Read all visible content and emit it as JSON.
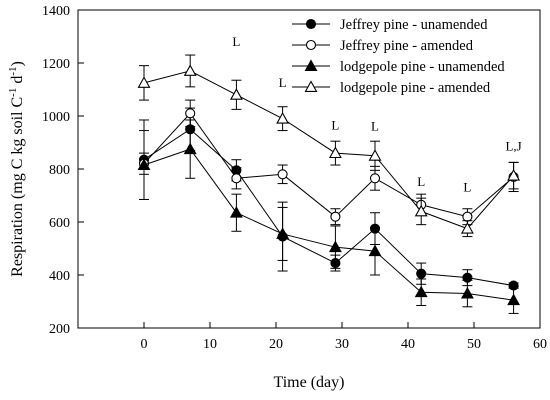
{
  "chart_data": {
    "type": "line",
    "xlabel": "Time (day)",
    "ylabel": {
      "parts": [
        {
          "text": "Respiration (mg C kg soil C",
          "sup": false
        },
        {
          "text": "-1",
          "sup": true
        },
        {
          "text": " d",
          "sup": false
        },
        {
          "text": "-1",
          "sup": true
        },
        {
          "text": ")",
          "sup": false
        }
      ]
    },
    "xlim": [
      -10,
      60
    ],
    "ylim": [
      200,
      1400
    ],
    "xticks": [
      0,
      10,
      20,
      30,
      40,
      50,
      60
    ],
    "yticks": [
      200,
      400,
      600,
      800,
      1000,
      1200,
      1400
    ],
    "legend_position": "top-right",
    "series": [
      {
        "name": "Jeffrey pine - unamended",
        "marker": "circle-filled",
        "x": [
          0,
          7,
          14,
          21,
          29,
          35,
          42,
          49,
          56
        ],
        "y": [
          835,
          950,
          795,
          545,
          445,
          575,
          405,
          390,
          360
        ],
        "err": [
          150,
          80,
          40,
          130,
          30,
          60,
          40,
          30,
          10
        ]
      },
      {
        "name": "Jeffrey pine - amended",
        "marker": "circle-open",
        "x": [
          0,
          7,
          14,
          21,
          29,
          35,
          42,
          49,
          56
        ],
        "y": [
          820,
          1010,
          765,
          780,
          620,
          765,
          665,
          620,
          770
        ],
        "err": [
          40,
          50,
          40,
          35,
          30,
          45,
          40,
          30,
          55
        ]
      },
      {
        "name": "lodgepole pine - unamended",
        "marker": "triangle-filled",
        "x": [
          0,
          7,
          14,
          21,
          29,
          35,
          42,
          49,
          56
        ],
        "y": [
          815,
          875,
          635,
          555,
          505,
          490,
          335,
          330,
          305
        ],
        "err": [
          130,
          110,
          70,
          100,
          80,
          90,
          50,
          50,
          50
        ]
      },
      {
        "name": "lodgepole pine - amended",
        "marker": "triangle-open",
        "x": [
          0,
          7,
          14,
          21,
          29,
          35,
          42,
          49,
          56
        ],
        "y": [
          1125,
          1170,
          1080,
          990,
          860,
          850,
          640,
          575,
          775
        ],
        "err": [
          65,
          60,
          55,
          45,
          45,
          55,
          50,
          30,
          50
        ]
      }
    ],
    "annotations": [
      {
        "text": "L",
        "x": 14,
        "y": 1265
      },
      {
        "text": "L",
        "x": 21,
        "y": 1110
      },
      {
        "text": "L",
        "x": 29,
        "y": 950
      },
      {
        "text": "L",
        "x": 35,
        "y": 945
      },
      {
        "text": "L",
        "x": 42,
        "y": 735
      },
      {
        "text": "L",
        "x": 49,
        "y": 715
      },
      {
        "text": "L,J",
        "x": 56,
        "y": 870
      }
    ]
  }
}
